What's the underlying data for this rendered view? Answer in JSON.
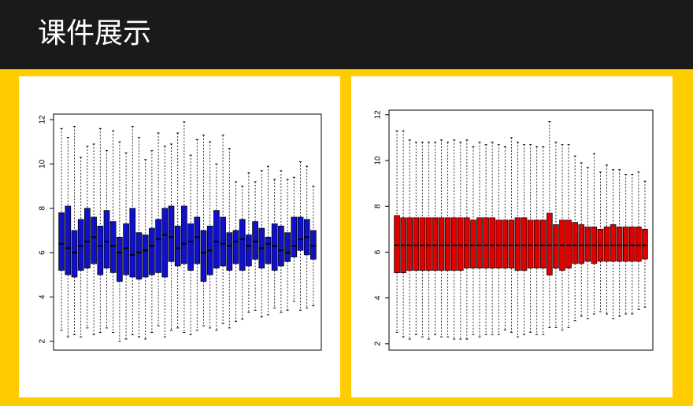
{
  "header": {
    "title": "课件展示"
  },
  "chart_data": [
    {
      "type": "boxplot",
      "color": "#1010c8",
      "ylim": [
        1.6,
        12.25
      ],
      "yticks": [
        2,
        4,
        6,
        8,
        10,
        12
      ],
      "whishi": [
        11.6,
        11.2,
        11.7,
        10.3,
        10.8,
        10.9,
        11.6,
        10.6,
        11.5,
        11.0,
        10.5,
        11.7,
        11.2,
        10.2,
        10.6,
        11.4,
        10.8,
        10.9,
        11.4,
        11.9,
        10.4,
        11.1,
        11.3,
        11.0,
        10.0,
        11.3,
        10.7,
        9.2,
        9.0,
        9.6,
        9.2,
        9.7,
        9.9,
        9.3,
        9.7,
        9.3,
        9.4,
        10.1,
        9.9,
        9.0
      ],
      "q3": [
        7.8,
        8.1,
        7.0,
        7.5,
        8.0,
        7.6,
        7.2,
        7.9,
        7.4,
        6.7,
        7.3,
        8.0,
        6.9,
        6.8,
        7.1,
        7.5,
        8.0,
        8.1,
        7.2,
        8.1,
        7.3,
        7.6,
        7.0,
        7.2,
        7.9,
        7.6,
        6.9,
        7.0,
        7.5,
        6.8,
        7.4,
        7.1,
        6.7,
        7.3,
        7.2,
        6.9,
        7.6,
        7.6,
        7.5,
        7.0
      ],
      "median": [
        6.4,
        6.2,
        6.0,
        6.3,
        6.5,
        6.7,
        6.3,
        6.5,
        6.3,
        6.0,
        6.2,
        5.9,
        6.0,
        6.1,
        6.3,
        6.6,
        6.8,
        6.7,
        6.2,
        6.4,
        6.5,
        6.7,
        6.0,
        6.1,
        6.5,
        6.4,
        6.3,
        6.5,
        6.6,
        6.3,
        6.5,
        6.2,
        6.4,
        6.3,
        6.1,
        6.0,
        6.3,
        6.6,
        6.7,
        6.3
      ],
      "q1": [
        5.2,
        5.0,
        4.9,
        5.2,
        5.3,
        5.5,
        5.0,
        5.3,
        5.1,
        4.7,
        5.0,
        4.9,
        4.8,
        4.9,
        5.0,
        5.1,
        4.9,
        5.6,
        5.4,
        5.5,
        5.2,
        5.5,
        4.7,
        5.0,
        5.3,
        5.4,
        5.2,
        5.5,
        5.2,
        5.4,
        5.7,
        5.3,
        5.5,
        5.2,
        5.4,
        5.6,
        5.8,
        6.1,
        5.9,
        5.7
      ],
      "whislo": [
        2.5,
        2.2,
        2.3,
        2.2,
        2.6,
        2.3,
        2.4,
        2.6,
        2.4,
        2.0,
        2.1,
        2.3,
        2.2,
        2.1,
        2.4,
        2.7,
        2.2,
        2.5,
        2.6,
        2.4,
        2.3,
        2.5,
        2.7,
        2.6,
        2.5,
        2.8,
        2.6,
        2.9,
        3.0,
        3.3,
        3.4,
        3.1,
        3.2,
        3.5,
        3.3,
        3.4,
        3.8,
        3.4,
        3.5,
        3.6
      ]
    },
    {
      "type": "boxplot",
      "color": "#e00000",
      "ylim": [
        1.72,
        12.2
      ],
      "yticks": [
        2,
        4,
        6,
        8,
        10,
        12
      ],
      "whishi": [
        11.3,
        11.3,
        10.9,
        10.8,
        10.8,
        10.8,
        10.8,
        10.9,
        10.8,
        10.9,
        10.8,
        10.9,
        10.6,
        10.8,
        10.7,
        10.8,
        10.7,
        10.6,
        11.0,
        10.8,
        10.7,
        10.7,
        10.6,
        10.6,
        11.7,
        10.8,
        10.7,
        10.7,
        10.2,
        9.9,
        9.7,
        10.3,
        9.5,
        9.8,
        9.6,
        9.6,
        9.4,
        9.4,
        9.5,
        9.1
      ],
      "q3": [
        7.6,
        7.5,
        7.5,
        7.5,
        7.5,
        7.5,
        7.5,
        7.5,
        7.5,
        7.5,
        7.5,
        7.5,
        7.4,
        7.5,
        7.5,
        7.5,
        7.4,
        7.4,
        7.4,
        7.5,
        7.5,
        7.4,
        7.4,
        7.4,
        7.7,
        7.2,
        7.4,
        7.4,
        7.3,
        7.2,
        7.1,
        7.1,
        7.0,
        7.1,
        7.2,
        7.1,
        7.1,
        7.1,
        7.1,
        7.0
      ],
      "median": [
        6.3,
        6.3,
        6.3,
        6.3,
        6.3,
        6.3,
        6.3,
        6.3,
        6.3,
        6.3,
        6.3,
        6.3,
        6.3,
        6.3,
        6.3,
        6.3,
        6.3,
        6.3,
        6.3,
        6.3,
        6.3,
        6.3,
        6.3,
        6.3,
        6.3,
        6.3,
        6.3,
        6.3,
        6.3,
        6.3,
        6.3,
        6.3,
        6.3,
        6.3,
        6.3,
        6.3,
        6.3,
        6.3,
        6.3,
        6.3
      ],
      "q1": [
        5.1,
        5.1,
        5.2,
        5.2,
        5.2,
        5.2,
        5.2,
        5.2,
        5.2,
        5.2,
        5.2,
        5.3,
        5.3,
        5.3,
        5.3,
        5.3,
        5.3,
        5.3,
        5.3,
        5.2,
        5.2,
        5.3,
        5.3,
        5.3,
        5.0,
        5.3,
        5.2,
        5.3,
        5.5,
        5.5,
        5.6,
        5.5,
        5.6,
        5.6,
        5.6,
        5.6,
        5.6,
        5.6,
        5.6,
        5.7
      ],
      "whislo": [
        2.5,
        2.3,
        2.2,
        2.4,
        2.3,
        2.2,
        2.4,
        2.3,
        2.3,
        2.2,
        2.2,
        2.2,
        2.4,
        2.3,
        2.4,
        2.4,
        2.4,
        2.6,
        2.5,
        2.3,
        2.4,
        2.5,
        2.4,
        2.4,
        2.7,
        2.7,
        2.6,
        2.7,
        3.0,
        3.2,
        3.1,
        3.3,
        3.4,
        3.3,
        3.1,
        3.2,
        3.3,
        3.3,
        3.5,
        3.6
      ]
    }
  ]
}
